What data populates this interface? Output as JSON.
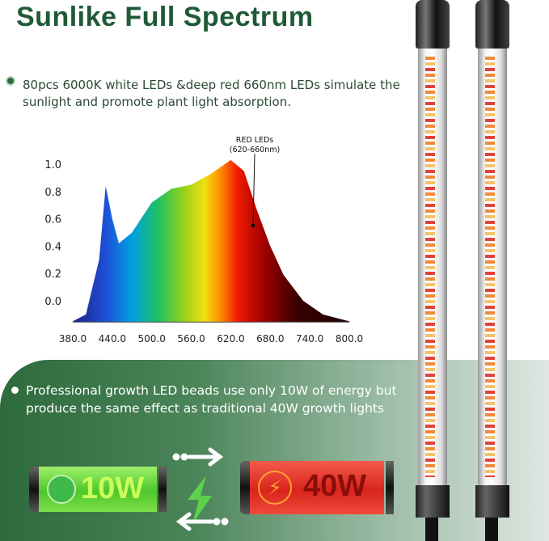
{
  "title": "Sunlike Full Spectrum",
  "description": "80pcs 6000K white LEDs &deep red 660nm LEDs simulate the sunlight and promote plant light absorption.",
  "chart_data": {
    "type": "area",
    "annotation": [
      "RED LEDs",
      "(620-660nm)"
    ],
    "x_ticks": [
      "380.0",
      "440.0",
      "500.0",
      "560.0",
      "620.0",
      "680.0",
      "740.0",
      "800.0"
    ],
    "y_ticks": [
      "0.0",
      "0.2",
      "0.4",
      "0.6",
      "0.8",
      "1.0"
    ],
    "xlim": [
      380,
      800
    ],
    "ylim": [
      0,
      1
    ],
    "x": [
      380,
      400,
      420,
      430,
      440,
      450,
      470,
      500,
      530,
      560,
      590,
      620,
      640,
      660,
      680,
      700,
      730,
      760,
      800
    ],
    "y": [
      -0.15,
      -0.1,
      0.3,
      0.84,
      0.6,
      0.42,
      0.5,
      0.72,
      0.82,
      0.85,
      0.93,
      1.03,
      0.95,
      0.66,
      0.4,
      0.19,
      0.0,
      -0.1,
      -0.15
    ],
    "grid": false
  },
  "panel": {
    "text": "Professional growth LED beads use only 10W of energy but produce the same effect as traditional 40W growth lights",
    "battery_low": "10W",
    "battery_high": "40W",
    "icons": [
      "leaf-icon",
      "lightning-icon",
      "arrow-right-icon",
      "arrow-left-icon"
    ]
  }
}
